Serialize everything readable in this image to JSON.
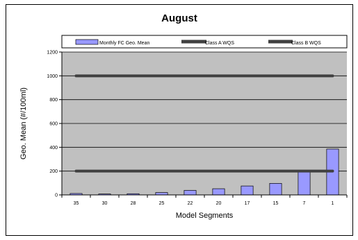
{
  "chart_data": {
    "type": "bar",
    "title": "August",
    "xlabel": "Model Segments",
    "ylabel": "Geo. Mean (#/100ml)",
    "categories": [
      "35",
      "30",
      "28",
      "25",
      "22",
      "20",
      "17",
      "15",
      "7",
      "1"
    ],
    "series": [
      {
        "name": "Monthly FC Geo. Mean",
        "values": [
          12,
          8,
          10,
          20,
          38,
          52,
          75,
          97,
          192,
          385
        ]
      }
    ],
    "reference_lines": [
      {
        "name": "Class A WQS",
        "value": 1000,
        "color": "#404040"
      },
      {
        "name": "Class B WQS",
        "value": 200,
        "color": "#404040"
      }
    ],
    "ylim": [
      0,
      1200
    ],
    "yticks": [
      0,
      200,
      400,
      600,
      800,
      1000,
      1200
    ],
    "grid": true,
    "legend_position": "top",
    "colors": {
      "bar_fill": "#9999ff",
      "plot_background": "#c0c0c0",
      "line": "#404040"
    }
  }
}
